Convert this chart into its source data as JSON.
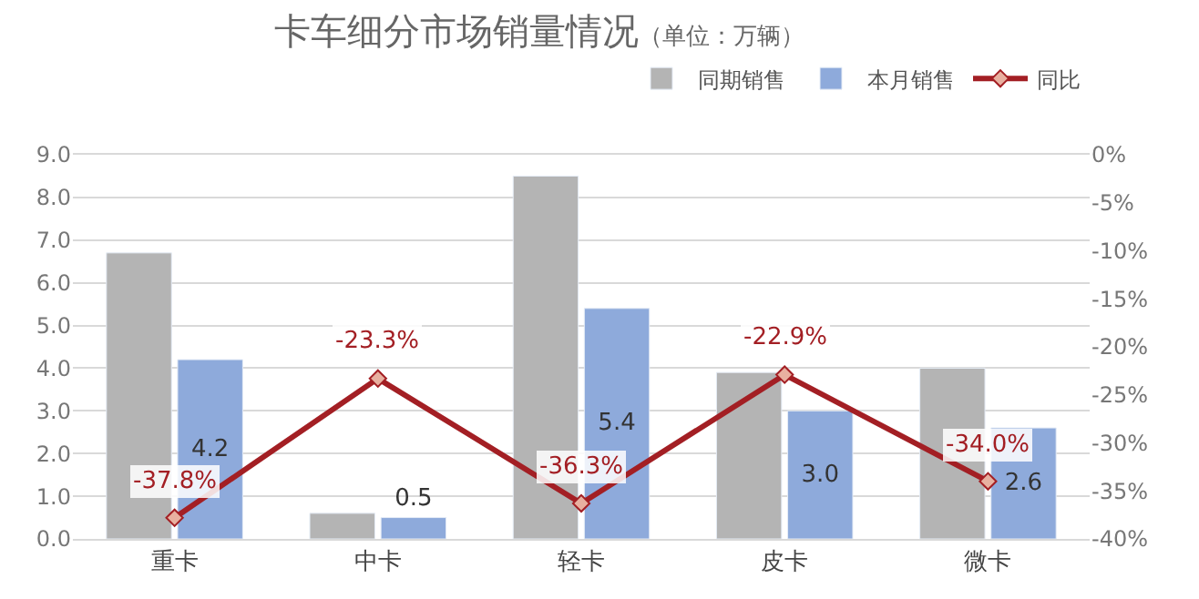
{
  "chart_data": {
    "type": "bar",
    "title": "卡车细分市场销量情况",
    "subtitle": "（单位：万辆）",
    "categories": [
      "重卡",
      "中卡",
      "轻卡",
      "皮卡",
      "微卡"
    ],
    "series": [
      {
        "name": "同期销售",
        "color": "#b4b4b4",
        "values": [
          6.7,
          0.6,
          8.5,
          3.9,
          4.0
        ]
      },
      {
        "name": "本月销售",
        "color": "#8eaadb",
        "values": [
          4.2,
          0.5,
          5.4,
          3.0,
          2.6
        ],
        "value_labels": [
          "4.2",
          "0.5",
          "5.4",
          "3.0",
          "2.6"
        ]
      },
      {
        "name": "同比",
        "type": "line",
        "axis": "y2",
        "color": "#a31f24",
        "marker": "diamond",
        "values": [
          -37.8,
          -23.3,
          -36.3,
          -22.9,
          -34.0
        ],
        "value_labels": [
          "-37.8%",
          "-23.3%",
          "-36.3%",
          "-22.9%",
          "-34.0%"
        ]
      }
    ],
    "ylim": [
      0,
      9
    ],
    "yticks": [
      "0.0",
      "1.0",
      "2.0",
      "3.0",
      "4.0",
      "5.0",
      "6.0",
      "7.0",
      "8.0",
      "9.0"
    ],
    "y2lim": [
      -40,
      0
    ],
    "y2ticks": [
      {
        "value": -40,
        "label": "-40%"
      },
      {
        "value": -35,
        "label": "-35%"
      },
      {
        "value": -30,
        "label": "-30%"
      },
      {
        "value": -25,
        "label": "-25%"
      },
      {
        "value": -20,
        "label": "-20%"
      },
      {
        "value": -15,
        "label": "-15%"
      },
      {
        "value": -10,
        "label": "-10%"
      },
      {
        "value": -5,
        "label": "-5%"
      },
      {
        "value": 0,
        "label": "0%"
      }
    ],
    "grid": "y",
    "legend": "top right"
  }
}
